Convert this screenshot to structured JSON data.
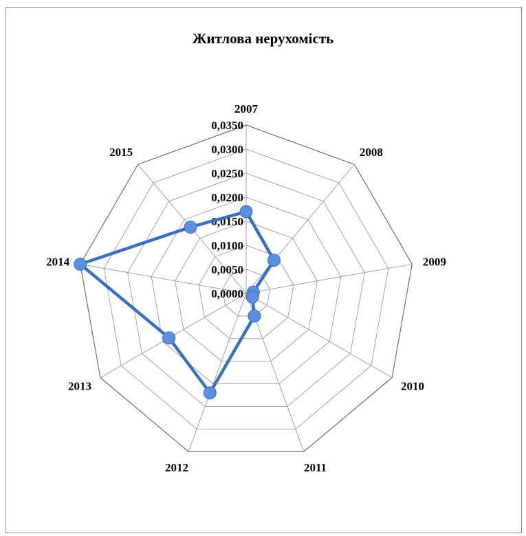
{
  "chart_data": {
    "type": "radar",
    "title": "Житлова нерухомість",
    "categories": [
      "2007",
      "2008",
      "2009",
      "2010",
      "2011",
      "2012",
      "2013",
      "2014",
      "2015"
    ],
    "series": [
      {
        "values": [
          0.017,
          0.009,
          0.0015,
          0.0015,
          0.005,
          0.022,
          0.0185,
          0.035,
          0.018
        ],
        "color": "#3a6fbf",
        "marker_color": "#5b8fe0"
      }
    ],
    "r_ticks": [
      "0,0000",
      "0,0050",
      "0,0100",
      "0,0150",
      "0,0200",
      "0,0250",
      "0,0300",
      "0,0350"
    ],
    "r_range": [
      0,
      0.035
    ],
    "grid": true,
    "legend": "none"
  }
}
